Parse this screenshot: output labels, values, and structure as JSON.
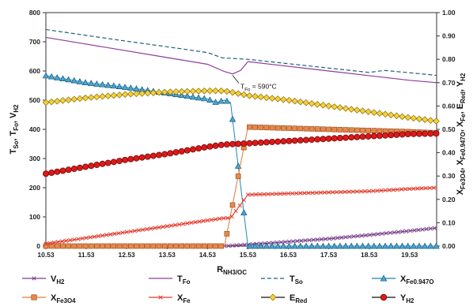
{
  "chart_data": {
    "type": "line",
    "xlabel": "R_NH3/OC",
    "xlabel_main": "R",
    "xlabel_sub": "NH3/OC",
    "ylabel_left": "T_So, T_Fo, V_H2",
    "ylabel_left_parts": [
      [
        "T",
        "So"
      ],
      [
        "T",
        "Fo"
      ],
      [
        "V",
        "H2"
      ]
    ],
    "ylabel_right": "X_Fe3O4, X_Fe0.947O, X_Fe, E_Red, Y_H2",
    "ylabel_right_parts": [
      [
        "X",
        "Fe3O4"
      ],
      [
        "X",
        "Fe0.947O"
      ],
      [
        "X",
        "Fe"
      ],
      [
        "E",
        "Red"
      ],
      [
        "Y",
        "H2"
      ]
    ],
    "xlim": [
      10.53,
      20.2
    ],
    "ylim_left": [
      0,
      800
    ],
    "ylim_right": [
      0,
      1.0
    ],
    "x_ticks": [
      10.53,
      11.53,
      12.53,
      13.53,
      14.53,
      15.53,
      16.53,
      17.53,
      18.53,
      19.53
    ],
    "x_tick_labels": [
      "10.53",
      "11.53",
      "12.53",
      "13.53",
      "14.53",
      "15.53",
      "16.53",
      "17.53",
      "18.53",
      "19.53"
    ],
    "y_left_ticks": [
      0,
      100,
      200,
      300,
      400,
      500,
      600,
      700,
      800
    ],
    "y_right_ticks": [
      "0.00",
      "0.10",
      "0.20",
      "0.30",
      "0.40",
      "0.50",
      "0.60",
      "0.70",
      "0.80",
      "0.90",
      "1.00"
    ],
    "grid": false,
    "legend_placement": "bottom",
    "annotation": {
      "text_main": "T",
      "text_sub": "Fo",
      "text_rest": " = 590°C",
      "x": 15.15,
      "y": 585,
      "axis": "left"
    },
    "series": [
      {
        "name": "V_H2",
        "name_main": "V",
        "name_sub": "H2",
        "axis": "left",
        "color": "#7b3f8c",
        "marker": "x",
        "dash": "",
        "x": [
          14.95,
          15.53,
          16.53,
          17.53,
          18.53,
          19.53,
          20.2
        ],
        "y": [
          0,
          5,
          15,
          25,
          38,
          52,
          62
        ]
      },
      {
        "name": "T_Fo",
        "name_main": "T",
        "name_sub": "Fo",
        "axis": "left",
        "color": "#8e3a9d",
        "marker": "none",
        "dash": "",
        "x": [
          10.53,
          11.53,
          12.53,
          13.53,
          14.53,
          14.95,
          15.15,
          15.35,
          15.53,
          16.53,
          17.53,
          18.53,
          19.53,
          20.2
        ],
        "y": [
          715,
          692,
          669,
          646,
          623,
          598,
          590,
          602,
          632,
          616,
          600,
          584,
          568,
          560
        ]
      },
      {
        "name": "T_So",
        "name_main": "T",
        "name_sub": "So",
        "axis": "left",
        "color": "#1f5f7a",
        "marker": "none",
        "dash": "5,3",
        "x": [
          10.53,
          11.53,
          12.53,
          13.53,
          14.53,
          14.9,
          15.53,
          16.53,
          17.53,
          18.53,
          18.9,
          19.53,
          20.2
        ],
        "y": [
          742,
          722,
          702,
          683,
          663,
          645,
          640,
          625,
          610,
          595,
          602,
          594,
          585
        ]
      },
      {
        "name": "X_Fe0.947O",
        "name_main": "X",
        "name_sub": "Fe0.947O",
        "axis": "right",
        "color": "#1f84b4",
        "marker": "triangle",
        "dash": "",
        "x": [
          10.53,
          11.53,
          12.53,
          13.53,
          14.53,
          14.75,
          14.95,
          15.1,
          15.53,
          16.53,
          17.53,
          18.53,
          19.53,
          20.2
        ],
        "y": [
          0.73,
          0.7,
          0.68,
          0.655,
          0.63,
          0.615,
          0.625,
          0.615,
          0.0,
          0.0,
          0.0,
          0.0,
          0.0,
          0.0
        ]
      },
      {
        "name": "X_Fe3O4",
        "name_main": "X",
        "name_sub": "Fe3O4",
        "axis": "right",
        "color": "#e07a3c",
        "marker": "square",
        "dash": "",
        "x": [
          10.53,
          11.53,
          12.53,
          13.53,
          14.53,
          14.95,
          15.53,
          16.53,
          17.53,
          18.53,
          19.53,
          20.2
        ],
        "y": [
          0.0,
          0.0,
          0.0,
          0.0,
          0.0,
          0.0,
          0.51,
          0.505,
          0.5,
          0.495,
          0.49,
          0.485
        ]
      },
      {
        "name": "X_Fe",
        "name_main": "X",
        "name_sub": "Fe",
        "axis": "right",
        "color": "#e03b2a",
        "marker": "x",
        "dash": "",
        "x": [
          10.53,
          11.53,
          12.53,
          13.53,
          14.53,
          14.95,
          15.1,
          15.53,
          16.53,
          17.53,
          18.53,
          19.53,
          20.2
        ],
        "y": [
          0.01,
          0.035,
          0.06,
          0.085,
          0.11,
          0.12,
          0.12,
          0.22,
          0.225,
          0.23,
          0.235,
          0.245,
          0.25
        ]
      },
      {
        "name": "E_Red",
        "name_main": "E",
        "name_sub": "Red",
        "axis": "right",
        "color": "#e0c030",
        "marker": "diamond",
        "dash": "",
        "x": [
          10.53,
          11.53,
          12.53,
          13.53,
          14.53,
          14.95,
          15.53,
          16.53,
          17.53,
          18.53,
          19.53,
          20.2
        ],
        "y": [
          0.615,
          0.635,
          0.65,
          0.66,
          0.665,
          0.665,
          0.645,
          0.625,
          0.6,
          0.575,
          0.55,
          0.535
        ]
      },
      {
        "name": "Y_H2",
        "name_main": "Y",
        "name_sub": "H2",
        "axis": "right",
        "color": "#d41f1f",
        "marker": "circle",
        "dash": "",
        "x": [
          10.53,
          11.53,
          12.53,
          13.53,
          14.53,
          14.95,
          15.53,
          16.53,
          17.53,
          18.53,
          19.53,
          20.2
        ],
        "y": [
          0.31,
          0.34,
          0.37,
          0.395,
          0.425,
          0.435,
          0.44,
          0.45,
          0.46,
          0.47,
          0.48,
          0.482
        ]
      }
    ]
  }
}
